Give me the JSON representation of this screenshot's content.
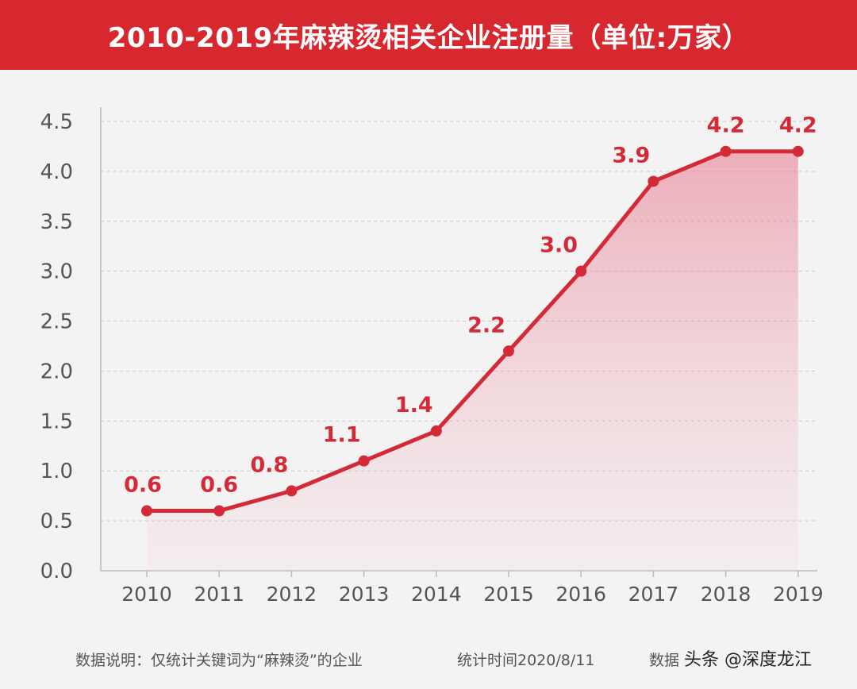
{
  "title": "2010-2019年麻辣烫相关企业注册量（单位:万家）",
  "colors": {
    "accent": "#d7282f",
    "line": "#d42a37",
    "fill": "#e8758a",
    "background": "#f3f3f3"
  },
  "chart_data": {
    "type": "area",
    "title": "2010-2019年麻辣烫相关企业注册量（单位:万家）",
    "categories": [
      "2010",
      "2011",
      "2012",
      "2013",
      "2014",
      "2015",
      "2016",
      "2017",
      "2018",
      "2019"
    ],
    "values": [
      0.6,
      0.6,
      0.8,
      1.1,
      1.4,
      2.2,
      3.0,
      3.9,
      4.2,
      4.2
    ],
    "labels": [
      "0.6",
      "0.6",
      "0.8",
      "1.1",
      "1.4",
      "2.2",
      "3.0",
      "3.9",
      "4.2",
      "4.2"
    ],
    "yticks": [
      "0.0",
      "0.5",
      "1.0",
      "1.5",
      "2.0",
      "2.5",
      "3.0",
      "3.5",
      "4.0",
      "4.5"
    ],
    "ylim": [
      0,
      4.5
    ],
    "grid": true,
    "legend": "none"
  },
  "footer": {
    "note": "数据说明：仅统计关键词为“麻辣烫”的企业",
    "stat_time": "统计时间2020/8/11",
    "source_partial": "数据",
    "watermark": "头条 @深度龙江"
  }
}
